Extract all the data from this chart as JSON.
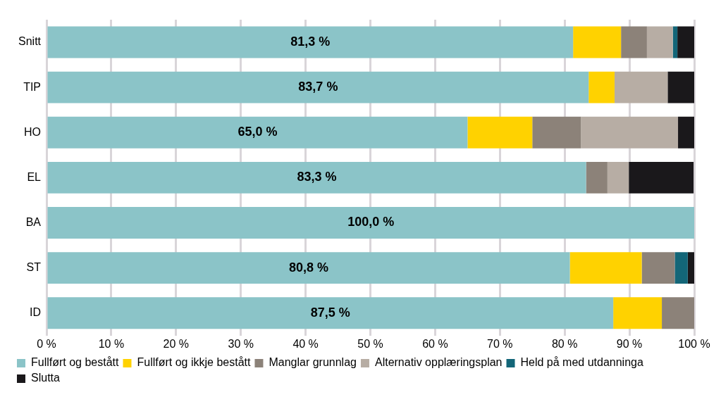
{
  "chart_data": {
    "type": "bar",
    "orientation": "horizontal",
    "stacked": true,
    "categories": [
      "Snitt",
      "TIP",
      "HO",
      "EL",
      "BA",
      "ST",
      "ID"
    ],
    "series": [
      {
        "name": "Fullført og bestått",
        "color": "#8bc4c8",
        "values": [
          81.3,
          83.7,
          65.0,
          83.3,
          100.0,
          80.8,
          87.5
        ],
        "value_labels": [
          "81,3 %",
          "83,7 %",
          "65,0 %",
          "83,3 %",
          "100,0 %",
          "80,8 %",
          "87,5 %"
        ]
      },
      {
        "name": "Fullført og ikkje bestått",
        "color": "#ffd200",
        "values": [
          7.4,
          4.0,
          10.0,
          0,
          0,
          11.1,
          7.5
        ]
      },
      {
        "name": "Manglar grunnlag",
        "color": "#8c8279",
        "values": [
          4.0,
          0,
          7.5,
          3.3,
          0,
          5.1,
          5.0
        ]
      },
      {
        "name": "Alternativ opplæringsplan",
        "color": "#b7ada4",
        "values": [
          4.0,
          8.2,
          15.0,
          3.3,
          0,
          0,
          0
        ]
      },
      {
        "name": "Held på med utdanninga",
        "color": "#136678",
        "values": [
          0.7,
          0,
          0,
          0,
          0,
          2.0,
          0
        ]
      },
      {
        "name": "Slutta",
        "color": "#1a181b",
        "values": [
          2.6,
          4.1,
          2.5,
          10.0,
          0,
          1.0,
          0
        ]
      }
    ],
    "xlim": [
      0,
      100
    ],
    "xticks": [
      {
        "value": 0,
        "label": "0 %"
      },
      {
        "value": 10,
        "label": "10 %"
      },
      {
        "value": 20,
        "label": "20 %"
      },
      {
        "value": 30,
        "label": "30 %"
      },
      {
        "value": 40,
        "label": "40 %"
      },
      {
        "value": 50,
        "label": "50 %"
      },
      {
        "value": 60,
        "label": "60 %"
      },
      {
        "value": 70,
        "label": "70 %"
      },
      {
        "value": 80,
        "label": "80 %"
      },
      {
        "value": 90,
        "label": "90 %"
      },
      {
        "value": 100,
        "label": "100 %"
      }
    ],
    "grid": "x",
    "legend": "bottom"
  }
}
